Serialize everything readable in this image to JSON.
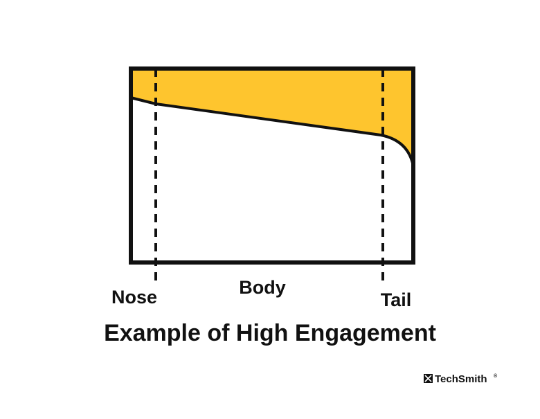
{
  "labels": {
    "nose": "Nose",
    "body": "Body",
    "tail": "Tail"
  },
  "title": "Example of High Engagement",
  "brand": {
    "name": "TechSmith",
    "mark": "®"
  }
}
